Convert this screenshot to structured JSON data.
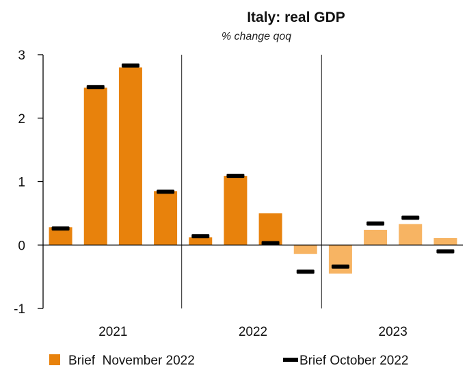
{
  "chart_data": {
    "type": "bar",
    "title": "Italy: real GDP",
    "subtitle": "% change qoq",
    "ylim": [
      -1,
      3
    ],
    "yticks": [
      3,
      2,
      1,
      0,
      -1
    ],
    "groups": [
      "2021",
      "2022",
      "2023"
    ],
    "categories": [
      "2021-Q1",
      "2021-Q2",
      "2021-Q3",
      "2021-Q4",
      "2022-Q1",
      "2022-Q2",
      "2022-Q3",
      "2022-Q4",
      "2023-Q1",
      "2023-Q2",
      "2023-Q3",
      "2023-Q4"
    ],
    "forecast_from_index": 7,
    "series": [
      {
        "name": "Brief  November 2022",
        "kind": "bar",
        "values": [
          0.28,
          2.48,
          2.8,
          0.85,
          0.12,
          1.09,
          0.5,
          -0.14,
          -0.45,
          0.24,
          0.33,
          0.11
        ]
      },
      {
        "name": "Brief October 2022",
        "kind": "marker",
        "values": [
          0.26,
          2.49,
          2.83,
          0.84,
          0.14,
          1.09,
          0.03,
          -0.42,
          -0.34,
          0.34,
          0.43,
          -0.1
        ]
      }
    ],
    "colors": {
      "bar": "#e8820c",
      "bar_forecast": "#f7b463",
      "marker": "#000000",
      "axis": "#000000"
    },
    "legend_position": "bottom"
  }
}
